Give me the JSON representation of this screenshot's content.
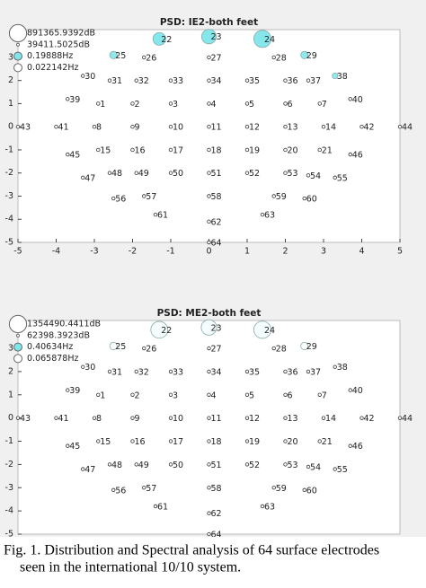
{
  "chart_data": [
    {
      "type": "scatter",
      "title": "PSD: IE2-both feet",
      "xlim": [
        -5,
        5
      ],
      "ylim": [
        -5,
        4.2
      ],
      "xticks": [
        -5,
        -4,
        -3,
        -2,
        -1,
        0,
        1,
        2,
        3,
        4,
        5
      ],
      "yticks": [
        -5,
        -4,
        -3,
        -2,
        -1,
        0,
        1,
        2,
        3
      ],
      "color_range": [
        "#ffffff",
        "#7fe6ea"
      ],
      "size_legend": [
        {
          "value": 891365.9392,
          "label": "891365.9392dB"
        },
        {
          "value": 39411.5025,
          "label": "39411.5025dB"
        }
      ],
      "color_legend": [
        {
          "value": 0.19888,
          "label": "0.19888Hz"
        },
        {
          "value": 0.022142,
          "label": "0.022142Hz"
        }
      ],
      "labels": [
        "1",
        "2",
        "3",
        "4",
        "5",
        "6",
        "7",
        "8",
        "9",
        "10",
        "11",
        "12",
        "13",
        "14",
        "15",
        "16",
        "17",
        "18",
        "19",
        "20",
        "21",
        "22",
        "23",
        "24",
        "25",
        "26",
        "27",
        "28",
        "29",
        "30",
        "31",
        "32",
        "33",
        "34",
        "35",
        "36",
        "37",
        "38",
        "39",
        "40",
        "41",
        "42",
        "43",
        "44",
        "45",
        "46",
        "47",
        "48",
        "49",
        "50",
        "51",
        "52",
        "53",
        "54",
        "55",
        "56",
        "57",
        "58",
        "59",
        "60",
        "61",
        "62",
        "63",
        "64"
      ],
      "x": [
        -2.9,
        -2,
        -1,
        0,
        1,
        2,
        2.9,
        -3,
        -2,
        -1,
        0,
        1,
        2,
        3,
        -2.9,
        -2,
        -1,
        0,
        1,
        2,
        2.9,
        -1.3,
        0,
        1.4,
        -2.5,
        -1.7,
        0,
        1.7,
        2.5,
        -3.3,
        -2.6,
        -1.9,
        -1,
        0,
        1,
        2,
        2.6,
        3.3,
        -3.7,
        3.7,
        -4,
        4,
        -5,
        5,
        -3.7,
        3.7,
        -3.3,
        -2.6,
        -1.9,
        -1,
        0,
        1,
        2,
        2.6,
        3.3,
        -2.5,
        -1.7,
        0,
        1.7,
        2.5,
        -1.4,
        0,
        1.4,
        0
      ],
      "y": [
        1,
        1,
        1,
        1,
        1,
        1,
        1,
        0,
        0,
        0,
        0,
        0,
        0,
        0,
        -1,
        -1,
        -1,
        -1,
        -1,
        -1,
        -1,
        3.8,
        3.9,
        3.8,
        3.1,
        3,
        3,
        3,
        3.1,
        2.2,
        2,
        2,
        2,
        2,
        2,
        2,
        2,
        2.2,
        1.2,
        1.2,
        0,
        0,
        0,
        0,
        -1.2,
        -1.2,
        -2.2,
        -2,
        -2,
        -2,
        -2,
        -2,
        -2,
        -2.1,
        -2.2,
        -3.1,
        -3,
        -3,
        -3,
        -3.1,
        -3.8,
        -4.1,
        -3.8,
        -5
      ],
      "power": [
        40000,
        40000,
        40000,
        40000,
        40000,
        40000,
        40000,
        40000,
        40000,
        40000,
        40000,
        40000,
        40000,
        40000,
        40000,
        40000,
        40000,
        40000,
        40000,
        40000,
        40000,
        440000,
        600000,
        891365.9392,
        125000,
        40000,
        40000,
        40000,
        125000,
        40000,
        40000,
        40000,
        40000,
        40000,
        40000,
        40000,
        40000,
        70000,
        40000,
        40000,
        40000,
        40000,
        40000,
        40000,
        40000,
        40000,
        40000,
        40000,
        40000,
        40000,
        40000,
        40000,
        40000,
        40000,
        40000,
        40000,
        40000,
        40000,
        40000,
        40000,
        40000,
        40000,
        40000,
        40000
      ],
      "freq": [
        0.03,
        0.03,
        0.03,
        0.03,
        0.03,
        0.03,
        0.03,
        0.03,
        0.03,
        0.03,
        0.03,
        0.03,
        0.03,
        0.03,
        0.03,
        0.03,
        0.03,
        0.03,
        0.03,
        0.03,
        0.03,
        0.19,
        0.19,
        0.19,
        0.18,
        0.03,
        0.03,
        0.03,
        0.18,
        0.03,
        0.03,
        0.03,
        0.03,
        0.03,
        0.03,
        0.03,
        0.03,
        0.17,
        0.03,
        0.03,
        0.03,
        0.03,
        0.03,
        0.03,
        0.03,
        0.03,
        0.03,
        0.03,
        0.03,
        0.03,
        0.03,
        0.03,
        0.03,
        0.03,
        0.03,
        0.03,
        0.03,
        0.03,
        0.03,
        0.03,
        0.03,
        0.03,
        0.03,
        0.03
      ]
    },
    {
      "type": "scatter",
      "title": "PSD: ME2-both feet",
      "xlim": [
        -5,
        5
      ],
      "ylim": [
        -5,
        4.2
      ],
      "yticks": [
        -5,
        -4,
        -3,
        -2,
        -1,
        0,
        1,
        2,
        3
      ],
      "color_range": [
        "#ffffff",
        "#7fe6ea"
      ],
      "size_legend": [
        {
          "value": 1354490.4411,
          "label": "1354490.4411dB"
        },
        {
          "value": 62398.3923,
          "label": "62398.3923dB"
        }
      ],
      "color_legend": [
        {
          "value": 0.40634,
          "label": "0.40634Hz"
        },
        {
          "value": 0.065878,
          "label": "0.065878Hz"
        }
      ],
      "labels": [
        "1",
        "2",
        "3",
        "4",
        "5",
        "6",
        "7",
        "8",
        "9",
        "10",
        "11",
        "12",
        "13",
        "14",
        "15",
        "16",
        "17",
        "18",
        "19",
        "20",
        "21",
        "22",
        "23",
        "24",
        "25",
        "26",
        "27",
        "28",
        "29",
        "30",
        "31",
        "32",
        "33",
        "34",
        "35",
        "36",
        "37",
        "38",
        "39",
        "40",
        "41",
        "42",
        "43",
        "44",
        "45",
        "46",
        "47",
        "48",
        "49",
        "50",
        "51",
        "52",
        "53",
        "54",
        "55",
        "56",
        "57",
        "58",
        "59",
        "60",
        "61",
        "62",
        "63",
        "64"
      ],
      "x": [
        -2.9,
        -2,
        -1,
        0,
        1,
        2,
        2.9,
        -3,
        -2,
        -1,
        0,
        1,
        2,
        3,
        -2.9,
        -2,
        -1,
        0,
        1,
        2,
        2.9,
        -1.3,
        0,
        1.4,
        -2.5,
        -1.7,
        0,
        1.7,
        2.5,
        -3.3,
        -2.6,
        -1.9,
        -1,
        0,
        1,
        2,
        2.6,
        3.3,
        -3.7,
        3.7,
        -4,
        4,
        -5,
        5,
        -3.7,
        3.7,
        -3.3,
        -2.6,
        -1.9,
        -1,
        0,
        1,
        2,
        2.6,
        3.3,
        -2.5,
        -1.7,
        0,
        1.7,
        2.5,
        -1.4,
        0,
        1.4,
        0
      ],
      "y": [
        1,
        1,
        1,
        1,
        1,
        1,
        1,
        0,
        0,
        0,
        0,
        0,
        0,
        0,
        -1,
        -1,
        -1,
        -1,
        -1,
        -1,
        -1,
        3.8,
        3.9,
        3.8,
        3.1,
        3,
        3,
        3,
        3.1,
        2.2,
        2,
        2,
        2,
        2,
        2,
        2,
        2,
        2.2,
        1.2,
        1.2,
        0,
        0,
        0,
        0,
        -1.2,
        -1.2,
        -2.2,
        -2,
        -2,
        -2,
        -2,
        -2,
        -2,
        -2.1,
        -2.2,
        -3.1,
        -3,
        -3,
        -3,
        -3.1,
        -3.8,
        -4.1,
        -3.8,
        -5
      ],
      "power": [
        63000,
        63000,
        63000,
        63000,
        63000,
        63000,
        63000,
        63000,
        63000,
        63000,
        63000,
        63000,
        63000,
        63000,
        63000,
        63000,
        63000,
        63000,
        63000,
        63000,
        63000,
        1300000,
        1050000,
        1354490.4411,
        190000,
        63000,
        63000,
        63000,
        190000,
        63000,
        63000,
        63000,
        63000,
        63000,
        63000,
        63000,
        63000,
        63000,
        63000,
        63000,
        63000,
        63000,
        63000,
        63000,
        63000,
        63000,
        63000,
        63000,
        63000,
        63000,
        63000,
        63000,
        63000,
        63000,
        63000,
        63000,
        63000,
        63000,
        63000,
        63000,
        63000,
        63000,
        63000,
        63000
      ],
      "freq": [
        0.07,
        0.07,
        0.07,
        0.07,
        0.07,
        0.07,
        0.07,
        0.07,
        0.07,
        0.07,
        0.07,
        0.07,
        0.07,
        0.07,
        0.07,
        0.07,
        0.07,
        0.07,
        0.07,
        0.07,
        0.07,
        0.09,
        0.09,
        0.09,
        0.07,
        0.07,
        0.07,
        0.07,
        0.07,
        0.07,
        0.07,
        0.07,
        0.07,
        0.07,
        0.07,
        0.07,
        0.07,
        0.07,
        0.07,
        0.07,
        0.07,
        0.07,
        0.07,
        0.07,
        0.07,
        0.07,
        0.07,
        0.07,
        0.07,
        0.07,
        0.07,
        0.07,
        0.07,
        0.07,
        0.07,
        0.07,
        0.07,
        0.07,
        0.07,
        0.07,
        0.07,
        0.07,
        0.07,
        0.07
      ]
    }
  ],
  "caption": {
    "lines": [
      "Fig. 1. Distribution and Spectral analysis of 64 surface electrodes",
      "seen in the international 10/10 system."
    ]
  }
}
